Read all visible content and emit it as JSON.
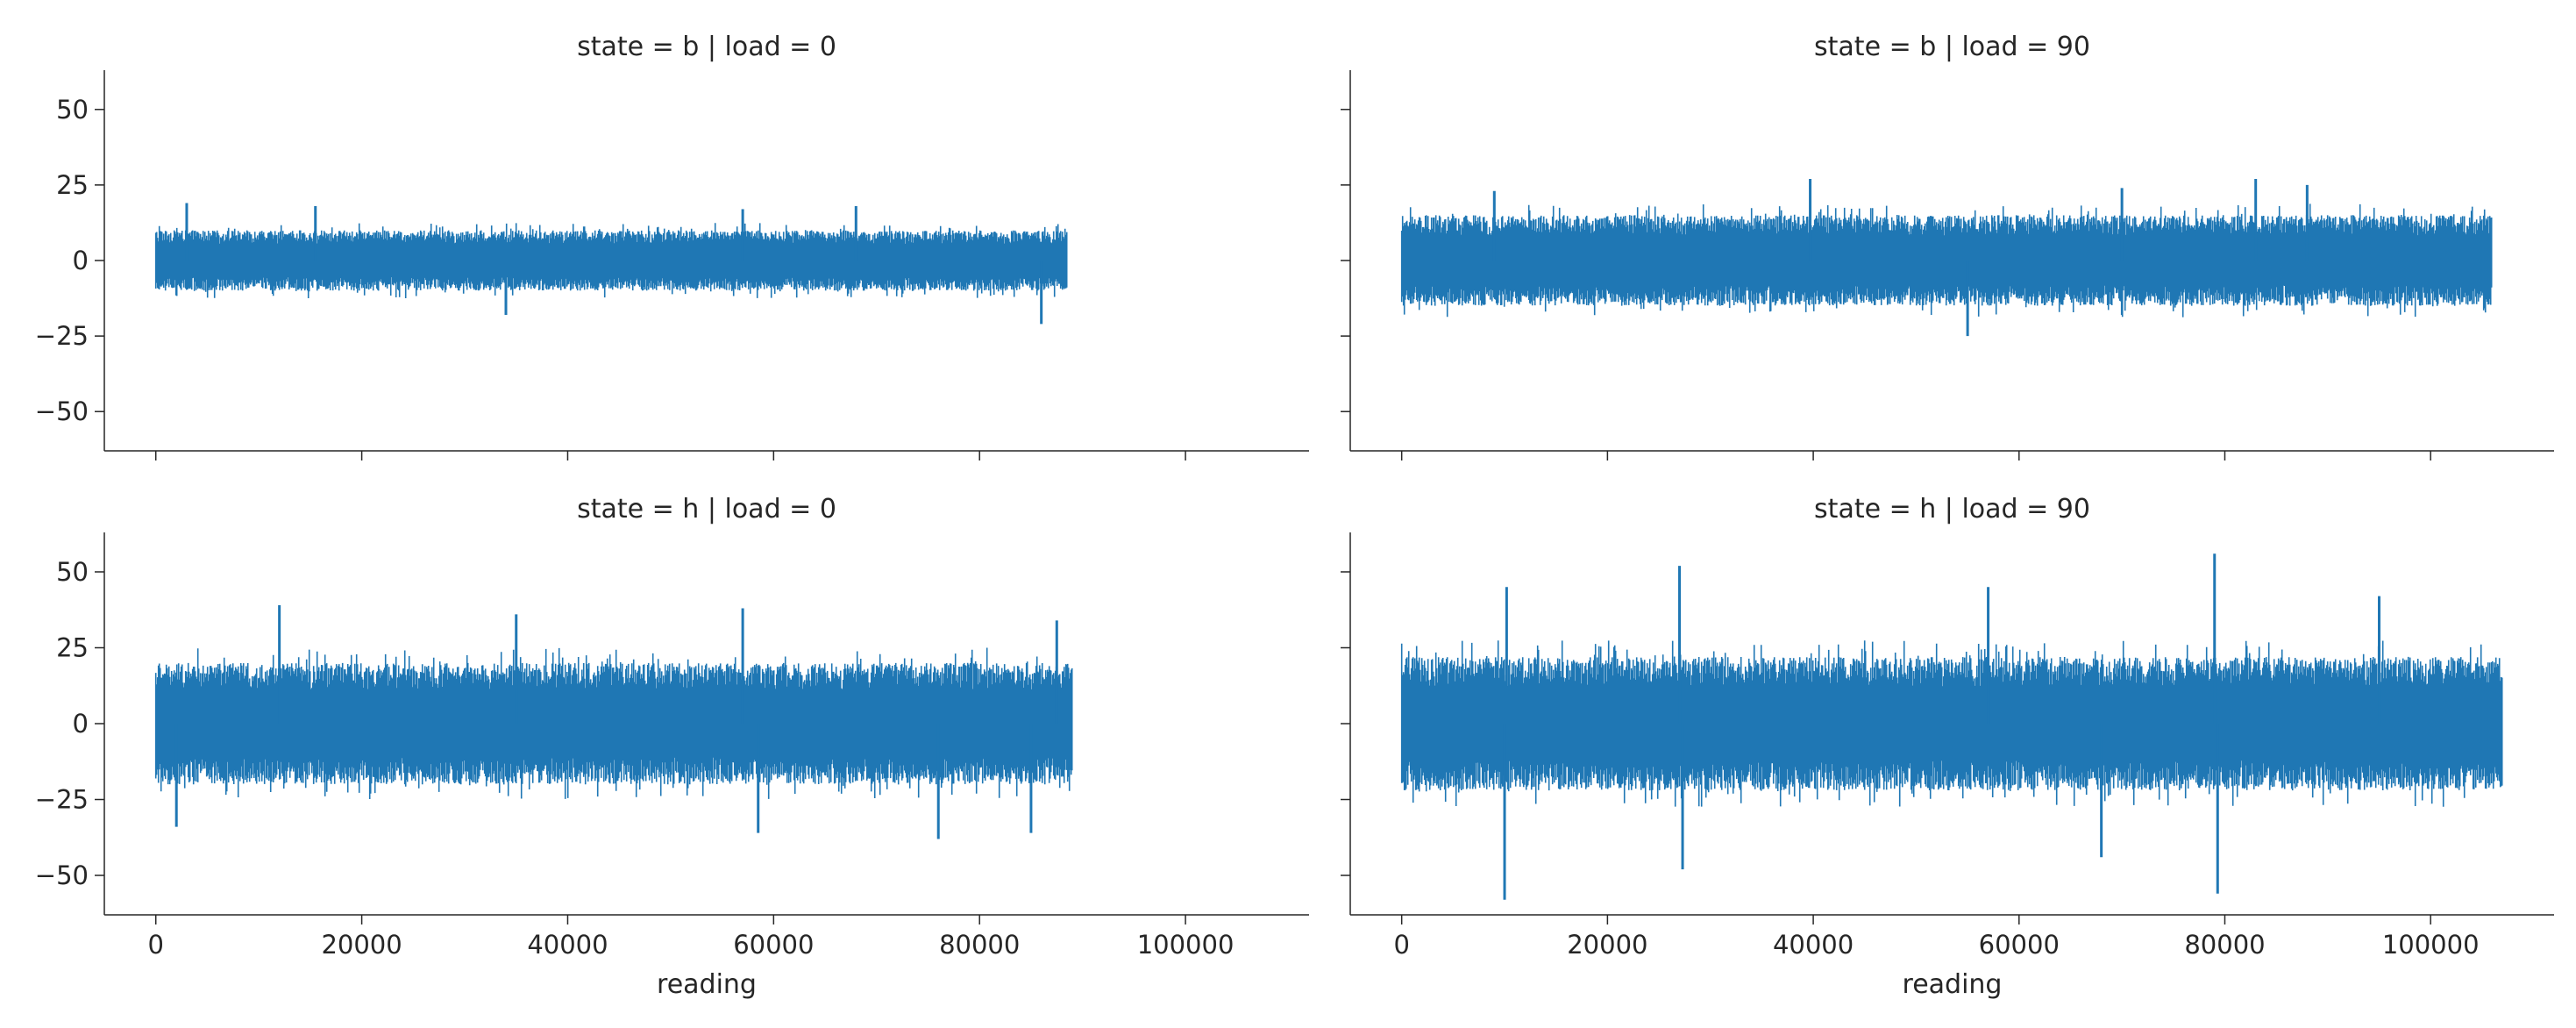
{
  "chart_data": {
    "type": "line",
    "layout": "facet-grid",
    "color": "#1f77b4",
    "shared_y": true,
    "shared_x_per_column": true,
    "xlim": [
      -5000,
      112000
    ],
    "ylim": [
      -63,
      63
    ],
    "yticks": [
      50,
      25,
      0,
      -25,
      -50
    ],
    "xticks": [
      0,
      20000,
      40000,
      60000,
      80000,
      100000
    ],
    "xlabel": "reading",
    "ylabel": "",
    "panels": [
      {
        "title": "state = b | load = 0",
        "x_range": [
          0,
          88500
        ],
        "typical_band": [
          -10,
          10
        ],
        "extremes": [
          {
            "x": 3000,
            "y": 19
          },
          {
            "x": 15500,
            "y": 18
          },
          {
            "x": 34000,
            "y": -18
          },
          {
            "x": 57000,
            "y": 17
          },
          {
            "x": 68000,
            "y": 18
          },
          {
            "x": 86000,
            "y": -21
          }
        ]
      },
      {
        "title": "state = b | load = 90",
        "x_range": [
          0,
          106000
        ],
        "typical_band": [
          -15,
          15
        ],
        "extremes": [
          {
            "x": 9000,
            "y": 23
          },
          {
            "x": 39700,
            "y": 27
          },
          {
            "x": 55000,
            "y": -25
          },
          {
            "x": 70000,
            "y": 24
          },
          {
            "x": 83000,
            "y": 27
          },
          {
            "x": 88000,
            "y": 25
          }
        ]
      },
      {
        "title": "state = h | load = 0",
        "x_range": [
          0,
          89000
        ],
        "typical_band": [
          -20,
          20
        ],
        "extremes": [
          {
            "x": 2000,
            "y": -34
          },
          {
            "x": 12000,
            "y": 39
          },
          {
            "x": 35000,
            "y": 36
          },
          {
            "x": 57000,
            "y": 38
          },
          {
            "x": 58500,
            "y": -36
          },
          {
            "x": 76000,
            "y": -38
          },
          {
            "x": 85000,
            "y": -36
          },
          {
            "x": 87500,
            "y": 34
          }
        ]
      },
      {
        "title": "state = h | load = 90",
        "x_range": [
          0,
          107000
        ],
        "typical_band": [
          -22,
          22
        ],
        "extremes": [
          {
            "x": 10000,
            "y": -58
          },
          {
            "x": 10200,
            "y": 45
          },
          {
            "x": 27000,
            "y": 52
          },
          {
            "x": 27300,
            "y": -48
          },
          {
            "x": 79000,
            "y": 56
          },
          {
            "x": 79300,
            "y": -56
          },
          {
            "x": 57000,
            "y": 45
          },
          {
            "x": 68000,
            "y": -44
          },
          {
            "x": 95000,
            "y": 42
          }
        ]
      }
    ]
  }
}
